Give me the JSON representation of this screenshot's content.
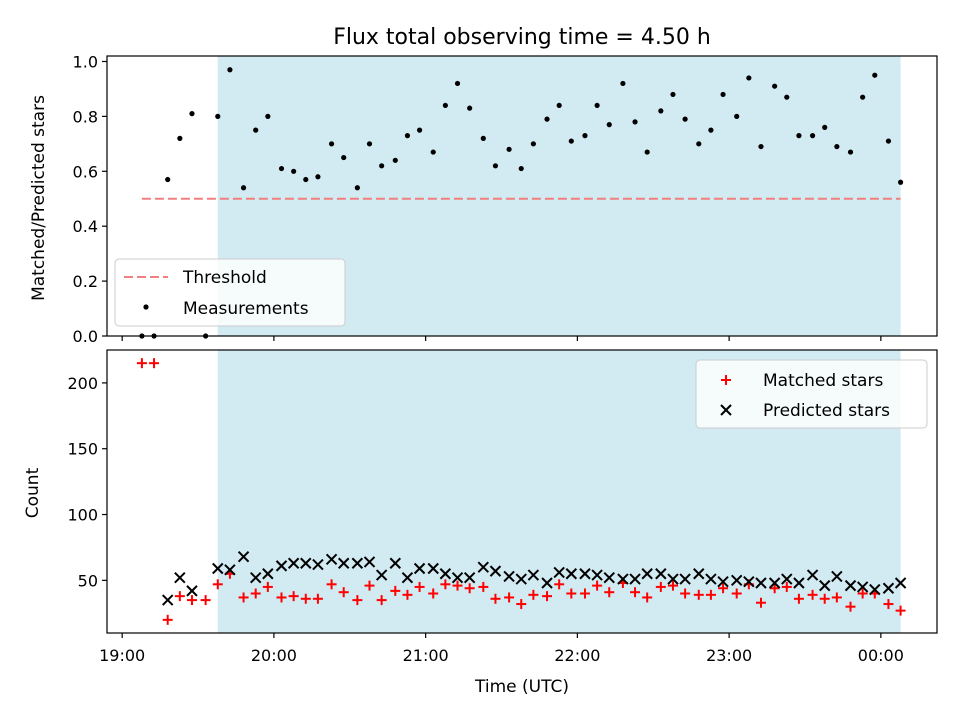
{
  "chart_data": [
    {
      "type": "scatter",
      "title": "Flux total observing time = 4.50 h",
      "ylabel": "Matched/Predicted stars",
      "xlabel": "",
      "xlim": [
        18.9,
        24.37
      ],
      "ylim": [
        0,
        1.02
      ],
      "yticks": [
        0,
        0.2,
        0.4,
        0.6,
        0.8,
        1.0
      ],
      "ytick_labels": [
        "0.0",
        "0.2",
        "0.4",
        "0.6",
        "0.8",
        "1.0"
      ],
      "grid": false,
      "legend_position": "lower-left",
      "shaded_interval": [
        19.63,
        24.13
      ],
      "threshold": {
        "name": "Threshold",
        "x_range": [
          19.13,
          24.13
        ],
        "value": 0.5,
        "color": "#f08080"
      },
      "series": [
        {
          "name": "Measurements",
          "color": "#000000",
          "x": [
            19.13,
            19.21,
            19.3,
            19.38,
            19.46,
            19.55,
            19.63,
            19.71,
            19.8,
            19.88,
            19.96,
            20.05,
            20.13,
            20.21,
            20.29,
            20.38,
            20.46,
            20.55,
            20.63,
            20.71,
            20.8,
            20.88,
            20.96,
            21.05,
            21.13,
            21.21,
            21.29,
            21.38,
            21.46,
            21.55,
            21.63,
            21.71,
            21.8,
            21.88,
            21.96,
            22.05,
            22.13,
            22.21,
            22.3,
            22.38,
            22.46,
            22.55,
            22.63,
            22.71,
            22.8,
            22.88,
            22.96,
            23.05,
            23.13,
            23.21,
            23.3,
            23.38,
            23.46,
            23.55,
            23.63,
            23.71,
            23.8,
            23.88,
            23.96,
            24.05,
            24.13
          ],
          "y": [
            0.0,
            0.0,
            0.57,
            0.72,
            0.81,
            0.0,
            0.8,
            0.97,
            0.54,
            0.75,
            0.8,
            0.61,
            0.6,
            0.57,
            0.58,
            0.7,
            0.65,
            0.54,
            0.7,
            0.62,
            0.64,
            0.73,
            0.75,
            0.67,
            0.84,
            0.92,
            0.83,
            0.72,
            0.62,
            0.68,
            0.61,
            0.7,
            0.79,
            0.84,
            0.71,
            0.73,
            0.84,
            0.77,
            0.92,
            0.78,
            0.67,
            0.82,
            0.88,
            0.79,
            0.7,
            0.75,
            0.88,
            0.8,
            0.94,
            0.69,
            0.91,
            0.87,
            0.73,
            0.73,
            0.76,
            0.69,
            0.67,
            0.87,
            0.95,
            0.71,
            0.56
          ]
        }
      ]
    },
    {
      "type": "scatter",
      "title": "",
      "ylabel": "Count",
      "xlabel": "Time (UTC)",
      "xlim": [
        18.9,
        24.37
      ],
      "ylim": [
        10,
        225
      ],
      "yticks": [
        50,
        100,
        150,
        200
      ],
      "ytick_labels": [
        "50",
        "100",
        "150",
        "200"
      ],
      "xticks": [
        19,
        20,
        21,
        22,
        23,
        24
      ],
      "xtick_labels": [
        "19:00",
        "20:00",
        "21:00",
        "22:00",
        "23:00",
        "00:00"
      ],
      "grid": false,
      "legend_position": "upper-right",
      "shaded_interval": [
        19.63,
        24.13
      ],
      "series": [
        {
          "name": "Matched stars",
          "marker": "+",
          "color": "#ff0000",
          "x": [
            19.13,
            19.21,
            19.3,
            19.38,
            19.46,
            19.55,
            19.63,
            19.71,
            19.8,
            19.88,
            19.96,
            20.05,
            20.13,
            20.21,
            20.29,
            20.38,
            20.46,
            20.55,
            20.63,
            20.71,
            20.8,
            20.88,
            20.96,
            21.05,
            21.13,
            21.21,
            21.29,
            21.38,
            21.46,
            21.55,
            21.63,
            21.71,
            21.8,
            21.88,
            21.96,
            22.05,
            22.13,
            22.21,
            22.3,
            22.38,
            22.46,
            22.55,
            22.63,
            22.71,
            22.8,
            22.88,
            22.96,
            23.05,
            23.13,
            23.21,
            23.3,
            23.38,
            23.46,
            23.55,
            23.63,
            23.71,
            23.8,
            23.88,
            23.96,
            24.05,
            24.13
          ],
          "y": [
            215,
            215,
            20,
            38,
            35,
            35,
            47,
            55,
            37,
            40,
            45,
            37,
            38,
            36,
            36,
            47,
            41,
            35,
            46,
            35,
            42,
            39,
            45,
            40,
            47,
            46,
            44,
            45,
            36,
            37,
            32,
            39,
            38,
            47,
            40,
            40,
            46,
            41,
            48,
            41,
            37,
            45,
            46,
            40,
            39,
            39,
            44,
            40,
            47,
            33,
            44,
            45,
            36,
            39,
            36,
            37,
            30,
            40,
            40,
            32,
            27
          ]
        },
        {
          "name": "Predicted stars",
          "marker": "x",
          "color": "#000000",
          "x": [
            19.13,
            19.21,
            19.3,
            19.38,
            19.46,
            19.55,
            19.63,
            19.71,
            19.8,
            19.88,
            19.96,
            20.05,
            20.13,
            20.21,
            20.29,
            20.38,
            20.46,
            20.55,
            20.63,
            20.71,
            20.8,
            20.88,
            20.96,
            21.05,
            21.13,
            21.21,
            21.29,
            21.38,
            21.46,
            21.55,
            21.63,
            21.71,
            21.8,
            21.88,
            21.96,
            22.05,
            22.13,
            22.21,
            22.3,
            22.38,
            22.46,
            22.55,
            22.63,
            22.71,
            22.8,
            22.88,
            22.96,
            23.05,
            23.13,
            23.21,
            23.3,
            23.38,
            23.46,
            23.55,
            23.63,
            23.71,
            23.8,
            23.88,
            23.96,
            24.05,
            24.13
          ],
          "y": [
            null,
            null,
            35,
            52,
            42,
            null,
            59,
            58,
            68,
            52,
            55,
            61,
            63,
            63,
            62,
            66,
            63,
            63,
            64,
            54,
            63,
            52,
            59,
            59,
            55,
            52,
            52,
            60,
            57,
            53,
            51,
            54,
            48,
            56,
            55,
            55,
            54,
            52,
            51,
            51,
            55,
            55,
            51,
            51,
            55,
            51,
            49,
            50,
            49,
            48,
            48,
            51,
            48,
            54,
            46,
            53,
            46,
            45,
            43,
            44,
            48
          ]
        }
      ]
    }
  ]
}
